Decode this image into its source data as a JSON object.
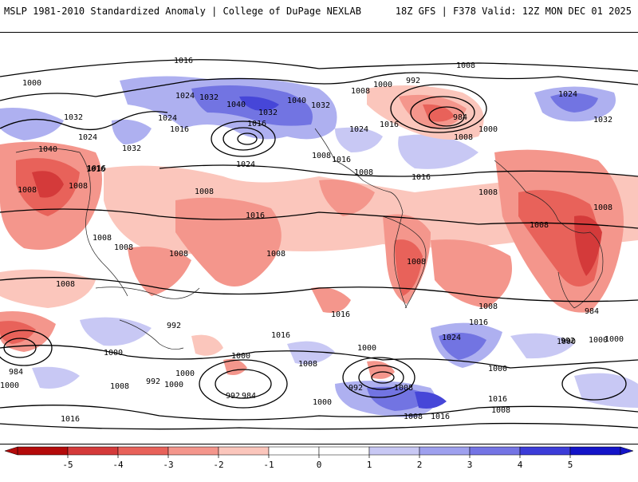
{
  "header": {
    "left_title": "MSLP 1981-2010 Standardized Anomaly | College of DuPage NEXLAB",
    "right_title": "18Z GFS | F378 Valid: 12Z MON DEC 01 2025"
  },
  "isobar_labels": [
    {
      "text": "1016"
    },
    {
      "text": "1000"
    },
    {
      "text": "1032"
    },
    {
      "text": "1024"
    },
    {
      "text": "1032"
    },
    {
      "text": "1040"
    },
    {
      "text": "1032"
    },
    {
      "text": "1040"
    },
    {
      "text": "1032"
    },
    {
      "text": "1008"
    },
    {
      "text": "1000"
    },
    {
      "text": "992"
    },
    {
      "text": "1008"
    },
    {
      "text": "1024"
    },
    {
      "text": "1032"
    },
    {
      "text": "1024"
    },
    {
      "text": "1016"
    },
    {
      "text": "1016"
    },
    {
      "text": "1024"
    },
    {
      "text": "1016"
    },
    {
      "text": "984"
    },
    {
      "text": "1000"
    },
    {
      "text": "1008"
    },
    {
      "text": "1016"
    },
    {
      "text": "1040"
    },
    {
      "text": "1024"
    },
    {
      "text": "1032"
    },
    {
      "text": "1016"
    },
    {
      "text": "1008"
    },
    {
      "text": "1008"
    },
    {
      "text": "1008"
    },
    {
      "text": "1024"
    },
    {
      "text": "1008"
    },
    {
      "text": "1016"
    },
    {
      "text": "1008"
    },
    {
      "text": "1016"
    },
    {
      "text": "1008"
    },
    {
      "text": "1008"
    },
    {
      "text": "1008"
    },
    {
      "text": "1008"
    },
    {
      "text": "1008"
    },
    {
      "text": "1008"
    },
    {
      "text": "1016"
    },
    {
      "text": "1008"
    },
    {
      "text": "1008"
    },
    {
      "text": "1008"
    },
    {
      "text": "1008"
    },
    {
      "text": "1016"
    },
    {
      "text": "1016"
    },
    {
      "text": "1016"
    },
    {
      "text": "1000"
    },
    {
      "text": "992"
    },
    {
      "text": "1000"
    },
    {
      "text": "1000"
    },
    {
      "text": "1024"
    },
    {
      "text": "1008"
    },
    {
      "text": "992"
    },
    {
      "text": "1000"
    },
    {
      "text": "984"
    },
    {
      "text": "992"
    },
    {
      "text": "1000"
    },
    {
      "text": "1000"
    },
    {
      "text": "984"
    },
    {
      "text": "992"
    },
    {
      "text": "1008"
    },
    {
      "text": "1008"
    },
    {
      "text": "1016"
    },
    {
      "text": "1008"
    },
    {
      "text": "1016"
    },
    {
      "text": "1016"
    },
    {
      "text": "1000"
    },
    {
      "text": "1008"
    },
    {
      "text": "1000"
    },
    {
      "text": "992"
    },
    {
      "text": "984"
    },
    {
      "text": "1000"
    },
    {
      "text": "1000"
    },
    {
      "text": "1000"
    }
  ],
  "colorbar": {
    "ticks": [
      "-5",
      "-4",
      "-3",
      "-2",
      "-1",
      "0",
      "1",
      "2",
      "3",
      "4",
      "5"
    ],
    "colors": [
      "#b40a0a",
      "#d43a3a",
      "#e8625a",
      "#f4968c",
      "#fbc6bc",
      "#ffffff",
      "#ffffff",
      "#c8c8f4",
      "#9ea0ee",
      "#7474e4",
      "#3c3cd8",
      "#1414c8"
    ]
  }
}
